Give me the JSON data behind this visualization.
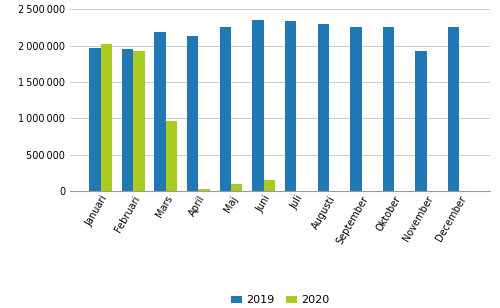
{
  "months": [
    "Januari",
    "Februari",
    "Mars",
    "April",
    "Maj",
    "Juni",
    "Juli",
    "Augusti",
    "September",
    "Oktober",
    "November",
    "December"
  ],
  "values_2019": [
    1960000,
    1950000,
    2190000,
    2130000,
    2260000,
    2350000,
    2340000,
    2300000,
    2260000,
    2250000,
    1920000,
    2260000
  ],
  "values_2020": [
    2020000,
    1920000,
    960000,
    30000,
    90000,
    150000,
    0,
    0,
    0,
    0,
    0,
    0
  ],
  "color_2019": "#2079B4",
  "color_2020": "#AACC22",
  "ylim": [
    0,
    2500000
  ],
  "yticks": [
    0,
    500000,
    1000000,
    1500000,
    2000000,
    2500000
  ],
  "legend_labels": [
    "2019",
    "2020"
  ],
  "background_color": "#ffffff",
  "grid_color": "#cccccc"
}
